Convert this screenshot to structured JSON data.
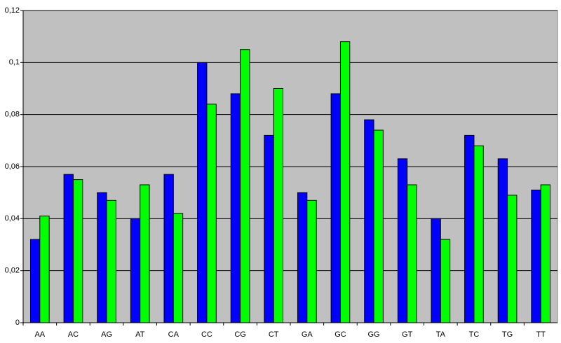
{
  "chart_data": {
    "type": "bar",
    "categories": [
      "AA",
      "AC",
      "AG",
      "AT",
      "CA",
      "CC",
      "CG",
      "CT",
      "GA",
      "GC",
      "GG",
      "GT",
      "TA",
      "TC",
      "TG",
      "TT"
    ],
    "series": [
      {
        "color": "#0000ff",
        "values": [
          0.032,
          0.057,
          0.05,
          0.04,
          0.057,
          0.1,
          0.088,
          0.072,
          0.05,
          0.088,
          0.078,
          0.063,
          0.04,
          0.072,
          0.063,
          0.051
        ]
      },
      {
        "color": "#00ff00",
        "values": [
          0.041,
          0.055,
          0.047,
          0.053,
          0.042,
          0.084,
          0.105,
          0.09,
          0.047,
          0.108,
          0.074,
          0.053,
          0.032,
          0.068,
          0.049,
          0.053
        ]
      }
    ],
    "ylim": [
      0,
      0.12
    ],
    "yticks": [
      0,
      {
        "value": 0.02,
        "label": "0,02"
      },
      {
        "value": 0.04,
        "label": "0,04"
      },
      {
        "value": 0.06,
        "label": "0,06"
      },
      {
        "value": 0.08,
        "label": "0,08"
      },
      {
        "value": 0.1,
        "label": "0,1"
      },
      {
        "value": 0.12,
        "label": "0,12"
      }
    ],
    "grid": true,
    "plot_color": "#c0c0c0"
  }
}
